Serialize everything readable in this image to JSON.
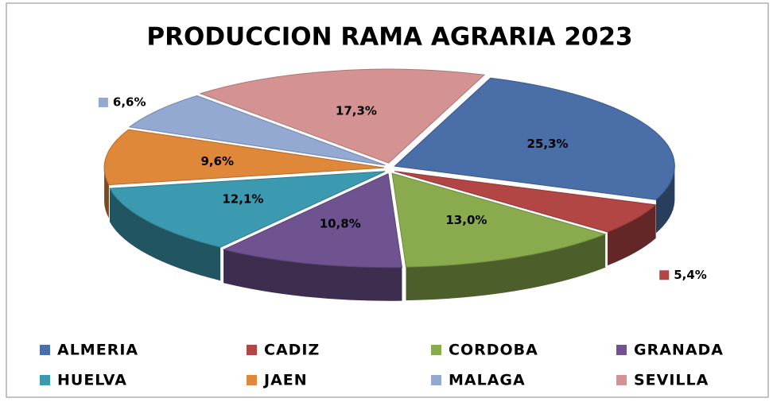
{
  "chart_data": {
    "type": "pie",
    "title": "PRODUCCION RAMA AGRARIA 2023",
    "categories": [
      "ALMERIA",
      "CADIZ",
      "CORDOBA",
      "GRANADA",
      "HUELVA",
      "JAEN",
      "MALAGA",
      "SEVILLA"
    ],
    "values": [
      25.3,
      5.4,
      13.0,
      10.8,
      12.1,
      9.6,
      6.6,
      17.3
    ],
    "value_labels": [
      "25,3%",
      "5,4%",
      "13,0%",
      "10,8%",
      "12,1%",
      "9,6%",
      "6,6%",
      "17,3%"
    ],
    "colors": [
      "#4a6ea8",
      "#b24645",
      "#8aab4d",
      "#6e5390",
      "#3c9ab0",
      "#e0883a",
      "#93a9d2",
      "#d49392"
    ],
    "legend": "bottom"
  }
}
